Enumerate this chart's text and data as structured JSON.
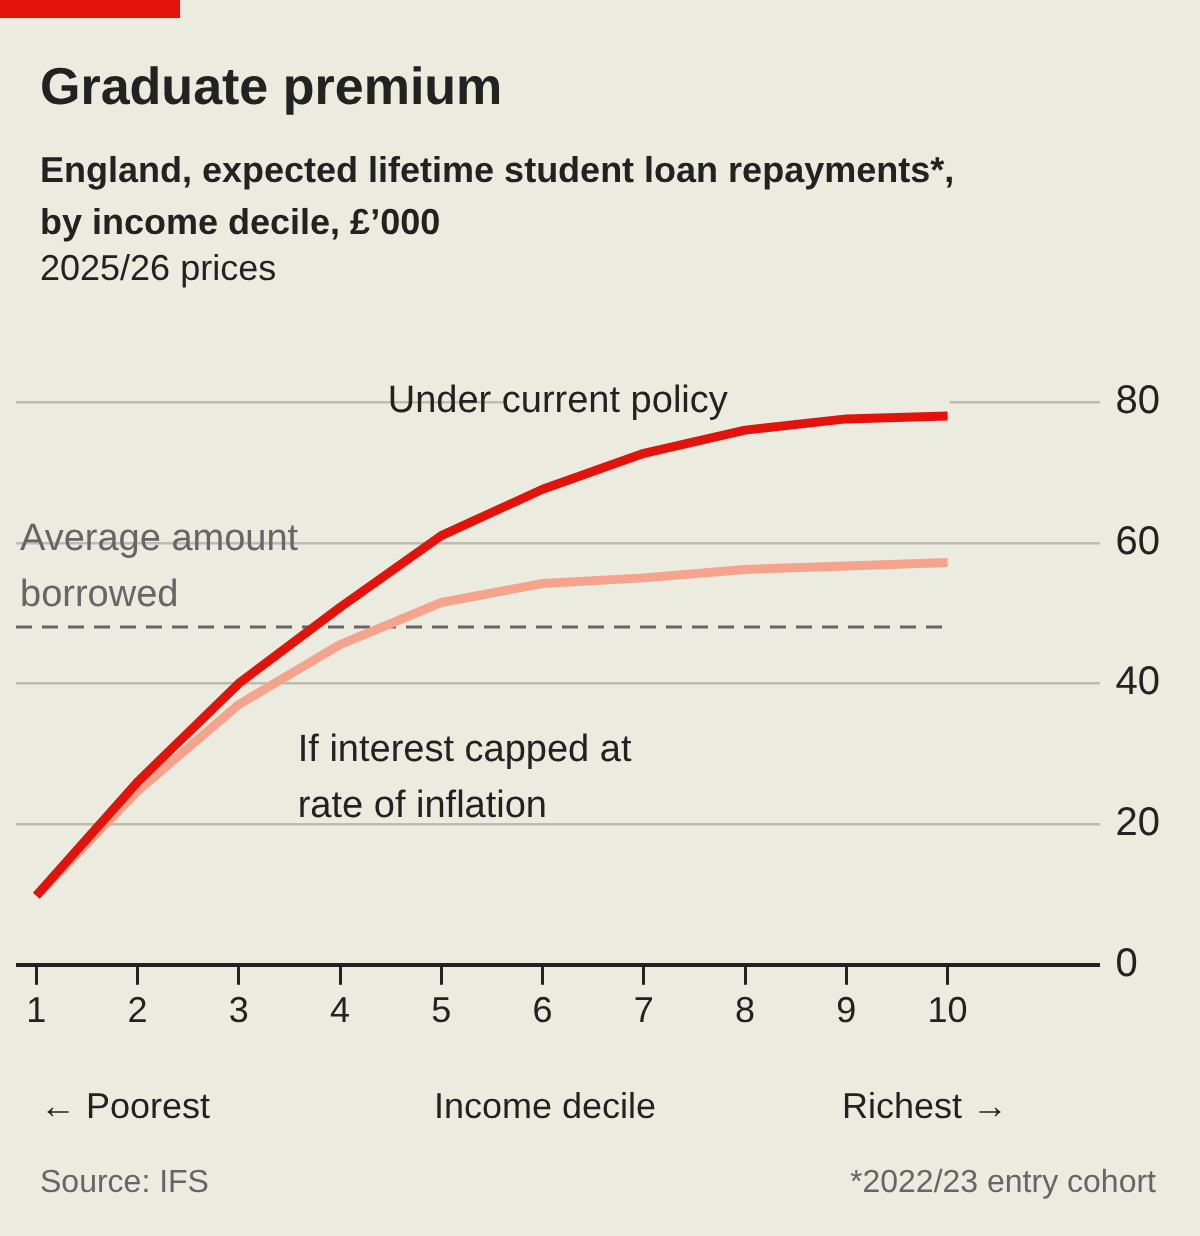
{
  "chart_data": {
    "type": "line",
    "title": "Graduate premium",
    "subtitle": "England, expected lifetime student loan repayments*, by income decile, £’000",
    "xlabel": "Income decile",
    "x": [
      1,
      2,
      3,
      4,
      5,
      6,
      7,
      8,
      9,
      10
    ],
    "series": [
      {
        "name": "Under current policy",
        "color": "#e3120b",
        "values": [
          9.8,
          26,
          40,
          50.8,
          61,
          67.6,
          72.7,
          76,
          77.6,
          78
        ]
      },
      {
        "name": "If interest capped at rate of inflation",
        "color": "#f6a38e",
        "values": [
          9.8,
          24.7,
          37,
          45.5,
          51.5,
          54.2,
          55,
          56.2,
          56.7,
          57.2
        ]
      }
    ],
    "xlim": [
      0.8,
      11.5
    ],
    "xticks": [
      1,
      2,
      3,
      4,
      5,
      6,
      7,
      8,
      9,
      10
    ],
    "ylim": [
      0,
      80
    ],
    "yticks": [
      0,
      20,
      40,
      60,
      80
    ],
    "ref_lines": [
      {
        "axis": "y",
        "value": 48,
        "label": "Average amount borrowed",
        "color": "#666666",
        "line_style": "dashed"
      }
    ],
    "annotations": [
      "2025/26 prices",
      "← Poorest",
      "Richest →",
      "Source: IFS",
      "*2022/23 entry cohort"
    ],
    "grid": "y",
    "legend": false,
    "marker": "none",
    "line_style": "solid"
  }
}
